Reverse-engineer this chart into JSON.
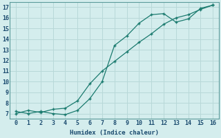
{
  "xlabel": "Humidex (Indice chaleur)",
  "curve1_x": [
    0,
    1,
    2,
    3,
    4,
    5,
    6,
    7,
    8,
    9,
    10,
    11,
    12,
    13,
    14,
    15,
    16
  ],
  "curve1_y": [
    7.2,
    7.0,
    7.2,
    7.0,
    6.9,
    7.3,
    8.4,
    10.0,
    13.4,
    14.3,
    15.5,
    16.3,
    16.4,
    15.6,
    15.9,
    16.9,
    17.2
  ],
  "curve2_x": [
    0,
    1,
    2,
    3,
    4,
    5,
    6,
    7,
    8,
    9,
    10,
    11,
    12,
    13,
    14,
    15,
    16
  ],
  "curve2_y": [
    7.0,
    7.3,
    7.1,
    7.4,
    7.5,
    8.2,
    9.8,
    11.0,
    11.9,
    12.8,
    13.7,
    14.5,
    15.4,
    16.0,
    16.3,
    16.8,
    17.2
  ],
  "line_color": "#1a7a6e",
  "bg_color": "#d4eded",
  "grid_color": "#b8d8d8",
  "text_color": "#1a4a6e",
  "xlim": [
    -0.5,
    16.5
  ],
  "ylim": [
    6.5,
    17.5
  ],
  "yticks": [
    7,
    8,
    9,
    10,
    11,
    12,
    13,
    14,
    15,
    16,
    17
  ],
  "xticks": [
    0,
    1,
    2,
    3,
    4,
    5,
    6,
    7,
    8,
    9,
    10,
    11,
    12,
    13,
    14,
    15,
    16
  ]
}
